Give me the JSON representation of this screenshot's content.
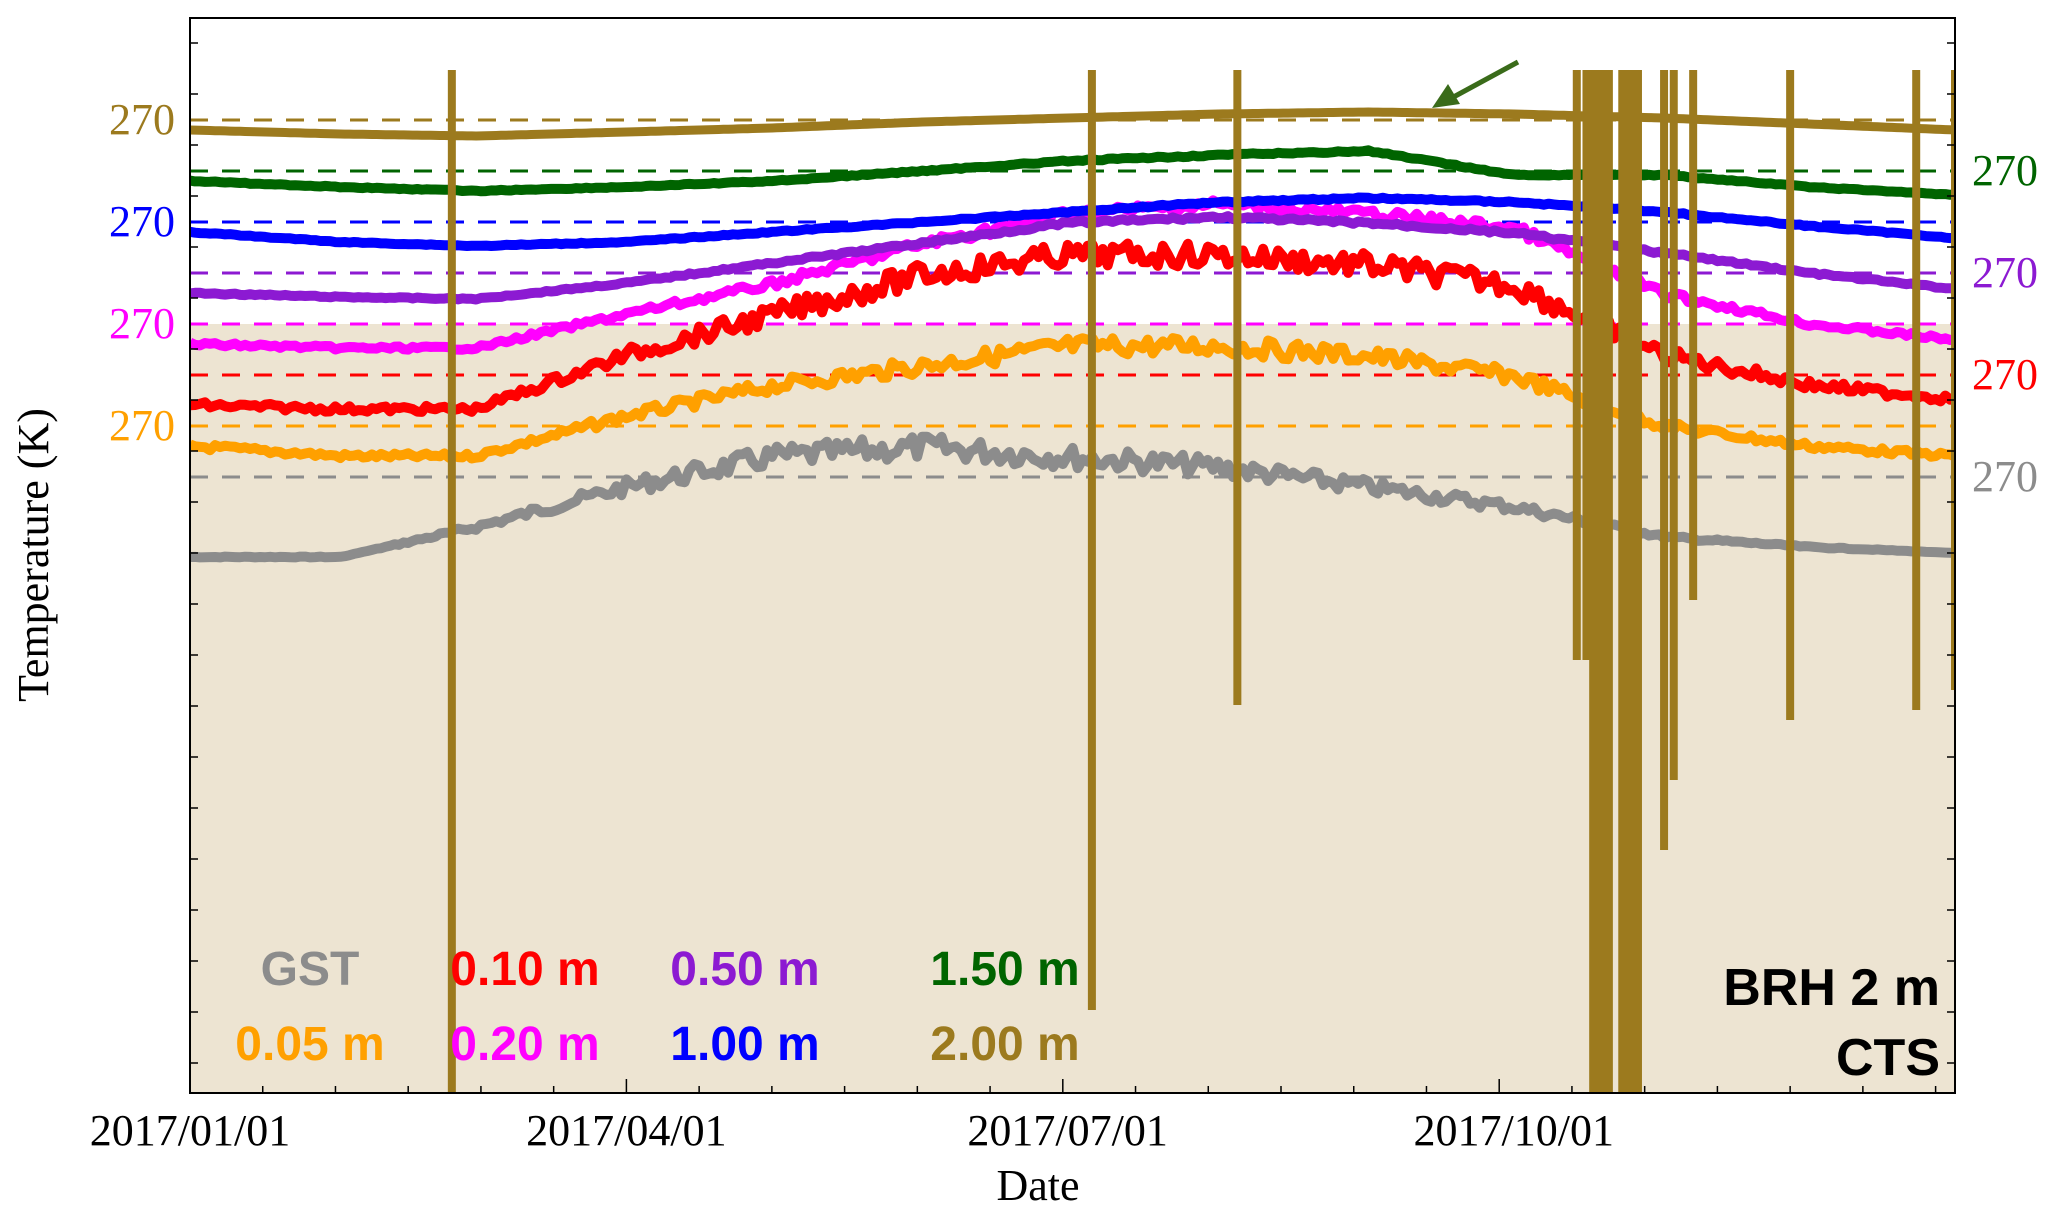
{
  "chart_data": {
    "type": "line",
    "title": "",
    "xlabel": "Date",
    "ylabel": "Temperature (K)",
    "annotation": [
      "BRH 2 m",
      "CTS"
    ],
    "x_ticks": [
      "2017/01/01",
      "2017/04/01",
      "2017/07/01",
      "2017/10/01"
    ],
    "x_range": [
      "2017-01-01",
      "2017-12-31"
    ],
    "grid": false,
    "legend_position": "bottom-left",
    "colors": {
      "GST": "#8c8c8c",
      "0.05 m": "#ffa000",
      "0.10 m": "#ff0000",
      "0.20 m": "#ff00ff",
      "0.50 m": "#8c1ad2",
      "1.00 m": "#0000ff",
      "1.50 m": "#006400",
      "2.00 m": "#9c7a1e",
      "background": "#ede4d2"
    },
    "reference_lines": [
      {
        "series": "2.00 m",
        "label": "270",
        "side": "left"
      },
      {
        "series": "1.50 m",
        "label": "270",
        "side": "right"
      },
      {
        "series": "1.00 m",
        "label": "270",
        "side": "left"
      },
      {
        "series": "0.50 m",
        "label": "270",
        "side": "right"
      },
      {
        "series": "0.20 m",
        "label": "270",
        "side": "left"
      },
      {
        "series": "0.10 m",
        "label": "270",
        "side": "right"
      },
      {
        "series": "0.05 m",
        "label": "270",
        "side": "left"
      },
      {
        "series": "GST",
        "label": "270",
        "side": "right"
      }
    ],
    "series": [
      {
        "name": "GST",
        "values": [
          -2.0,
          -2.0,
          -0.5,
          1.5,
          3.0,
          3.5,
          3.0,
          2.5,
          1.5,
          0.5,
          -1.0,
          -1.5,
          -1.8
        ]
      },
      {
        "name": "0.05 m",
        "values": [
          1.0,
          0.5,
          0.5,
          2.5,
          4.0,
          5.0,
          6.0,
          6.0,
          5.5,
          4.5,
          2.0,
          1.0,
          0.5
        ]
      },
      {
        "name": "0.10 m",
        "values": [
          0.5,
          0.3,
          0.3,
          3.0,
          5.0,
          7.0,
          8.0,
          8.0,
          7.5,
          6.5,
          3.0,
          1.5,
          0.8
        ]
      },
      {
        "name": "0.20 m",
        "values": [
          1.0,
          0.8,
          0.8,
          2.5,
          4.0,
          6.0,
          7.5,
          8.0,
          7.5,
          6.8,
          3.5,
          2.0,
          1.2
        ]
      },
      {
        "name": "0.50 m",
        "values": [
          1.0,
          0.8,
          0.7,
          1.5,
          2.5,
          3.5,
          4.5,
          4.8,
          4.5,
          4.0,
          3.0,
          2.0,
          1.2
        ]
      },
      {
        "name": "1.00 m",
        "values": [
          1.5,
          1.0,
          0.8,
          1.0,
          1.5,
          2.0,
          2.5,
          3.0,
          3.2,
          3.0,
          2.5,
          1.8,
          1.2
        ]
      },
      {
        "name": "1.50 m",
        "values": [
          1.5,
          1.2,
          1.0,
          1.2,
          1.5,
          2.0,
          2.5,
          2.8,
          3.0,
          1.8,
          1.8,
          1.2,
          0.8
        ]
      },
      {
        "name": "2.00 m",
        "values": [
          1.5,
          1.3,
          1.2,
          1.4,
          1.6,
          1.9,
          2.1,
          2.3,
          2.4,
          2.3,
          2.1,
          1.8,
          1.5
        ]
      }
    ],
    "x_months": [
      "2017-01-01",
      "2017-02-01",
      "2017-03-01",
      "2017-04-01",
      "2017-05-01",
      "2017-06-01",
      "2017-07-01",
      "2017-08-01",
      "2017-09-01",
      "2017-10-01",
      "2017-11-01",
      "2017-12-01",
      "2017-12-31"
    ],
    "legend": {
      "row1": [
        "GST",
        "0.10 m",
        "0.50 m",
        "1.50 m"
      ],
      "row2": [
        "0.05 m",
        "0.20 m",
        "1.00 m",
        "2.00 m"
      ]
    }
  }
}
